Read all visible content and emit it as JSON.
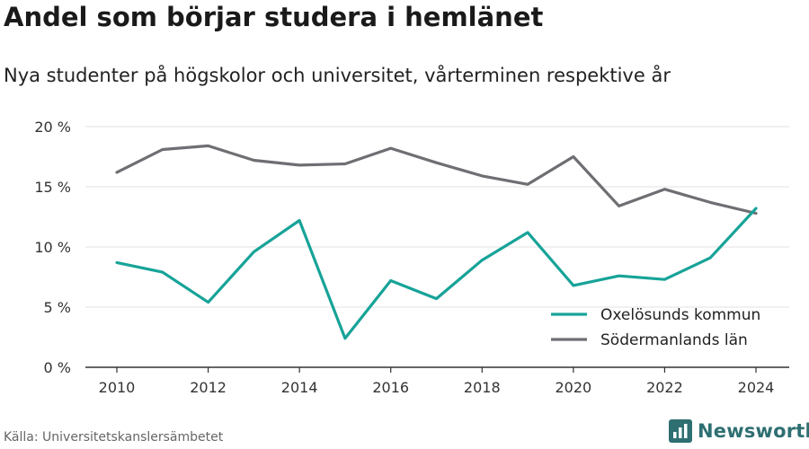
{
  "header": {
    "title": "Andel som börjar studera i hemlänet",
    "subtitle": "Nya studenter på högskolor och universitet, vårterminen respektive år"
  },
  "footer": {
    "source": "Källa: Universitetskanslersämbetet",
    "brand": "Newsworthy",
    "brand_icon": "bar-chart-logo-icon"
  },
  "colors": {
    "series_1": "#17a398",
    "series_2": "#6e6e73",
    "grid": "#e2e2e2",
    "axis": "#333333",
    "brand": "#2e6f72"
  },
  "chart_data": {
    "type": "line",
    "title": "Andel som börjar studera i hemlänet",
    "subtitle": "Nya studenter på högskolor och universitet, vårterminen respektive år",
    "x": [
      2010,
      2011,
      2012,
      2013,
      2014,
      2015,
      2016,
      2017,
      2018,
      2019,
      2020,
      2021,
      2022,
      2023,
      2024
    ],
    "x_ticks": [
      2010,
      2012,
      2014,
      2016,
      2018,
      2020,
      2022,
      2024
    ],
    "y_ticks": [
      0,
      5,
      10,
      15,
      20
    ],
    "y_tick_labels": [
      "0 %",
      "5 %",
      "10 %",
      "15 %",
      "20 %"
    ],
    "xlim": [
      2010,
      2024
    ],
    "ylim": [
      0,
      20
    ],
    "grid": "horizontal",
    "legend_position": "bottom-right",
    "series": [
      {
        "name": "Oxelösunds kommun",
        "values": [
          8.7,
          7.9,
          5.4,
          9.6,
          12.2,
          2.4,
          7.2,
          5.7,
          8.9,
          11.2,
          6.8,
          7.6,
          7.3,
          9.1,
          13.2
        ]
      },
      {
        "name": "Södermanlands län",
        "values": [
          16.2,
          18.1,
          18.4,
          17.2,
          16.8,
          16.9,
          18.2,
          17.0,
          15.9,
          15.2,
          17.5,
          13.4,
          14.8,
          13.7,
          12.8
        ]
      }
    ]
  }
}
